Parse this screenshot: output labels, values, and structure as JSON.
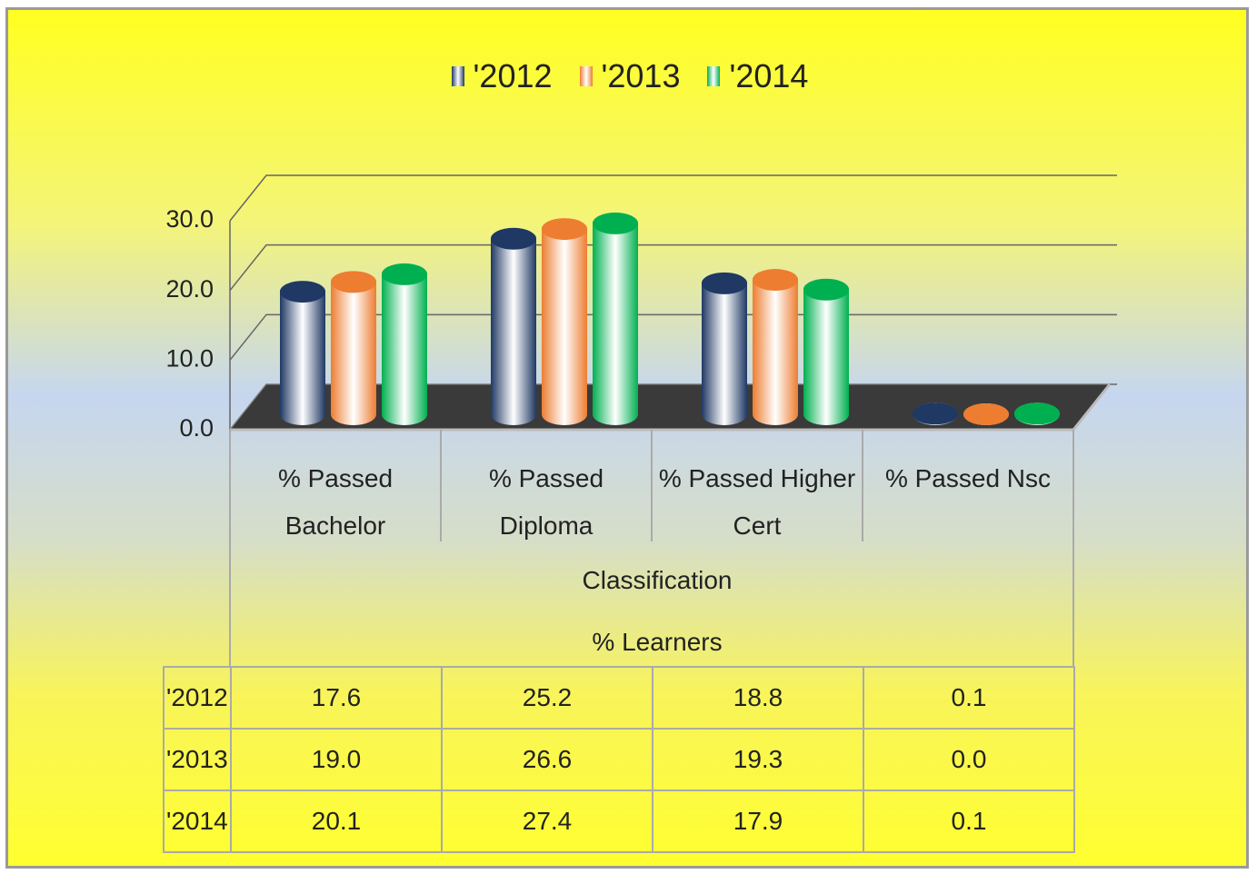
{
  "chart_data": {
    "type": "bar",
    "categories": [
      "% Passed Bachelor",
      "% Passed Diploma",
      "% Passed Higher Cert",
      "% Passed Nsc"
    ],
    "series": [
      {
        "name": "'2012",
        "color": "#1f3864",
        "values": [
          17.6,
          25.2,
          18.8,
          0.1
        ],
        "value_labels": [
          "17.6",
          "25.2",
          "18.8",
          "0.1"
        ]
      },
      {
        "name": "'2013",
        "color": "#ed7d31",
        "values": [
          19.0,
          26.6,
          19.3,
          0.0
        ],
        "value_labels": [
          "19.0",
          "26.6",
          "19.3",
          "0.0"
        ]
      },
      {
        "name": "'2014",
        "color": "#00b050",
        "values": [
          20.1,
          27.4,
          17.9,
          0.1
        ],
        "value_labels": [
          "20.1",
          "27.4",
          "17.9",
          "0.1"
        ]
      }
    ],
    "ylim": [
      0,
      30
    ],
    "yticks": [
      {
        "value": 0,
        "label": "0.0"
      },
      {
        "value": 10,
        "label": "10.0"
      },
      {
        "value": 20,
        "label": "20.0"
      },
      {
        "value": 30,
        "label": "30.0"
      }
    ],
    "x_label": "Classification",
    "y_label": "% Learners",
    "grid": true,
    "legend": "top"
  }
}
